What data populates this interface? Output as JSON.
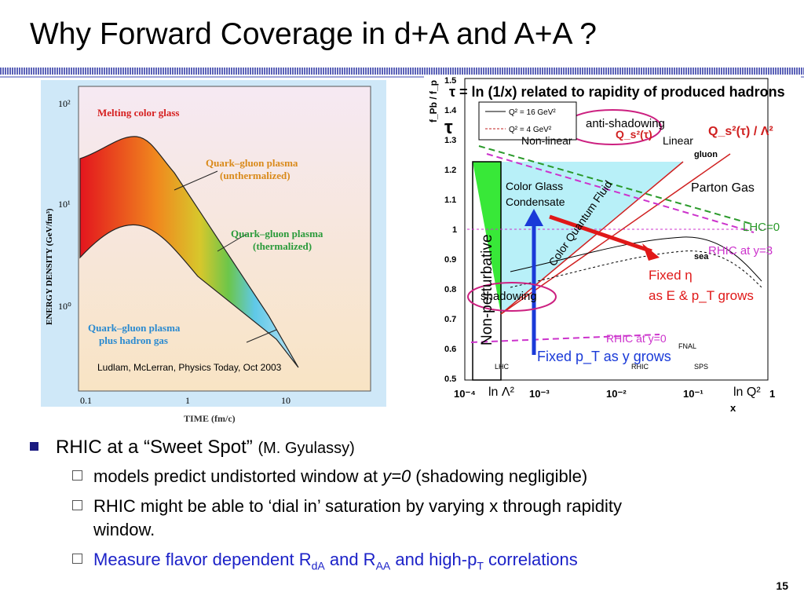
{
  "title": "Why Forward Coverage in d+A and A+A ?",
  "left_figure": {
    "labels": {
      "melting": "Melting color glass",
      "qgp_unth_1": "Quark–gluon plasma",
      "qgp_unth_2": "(unthermalized)",
      "qgp_th_1": "Quark–gluon plasma",
      "qgp_th_2": "(thermalized)",
      "qgp_had_1": "Quark–gluon plasma",
      "qgp_had_2": "plus hadron gas",
      "citation": "Ludlam, McLerran, Physics Today, Oct 2003"
    },
    "y_axis": "ENERGY DENSITY (GeV/fm³)",
    "y_ticks": [
      "10²",
      "10¹",
      "10⁰"
    ],
    "x_axis": "TIME (fm/c)",
    "x_ticks": [
      "0.1",
      "1",
      "10"
    ]
  },
  "right_figure": {
    "header": "τ = ln (1/x) related to rapidity of produced hadrons",
    "tau_symbol": "τ",
    "y_axis_label": "f_Pb / f_p",
    "y_ticks": [
      "1.5",
      "1.4",
      "1.3",
      "1.2",
      "1.1",
      "1",
      "0.9",
      "0.8",
      "0.7",
      "0.6",
      "0.5"
    ],
    "x_label": "x",
    "x_ticks": [
      "10⁻⁴",
      "10⁻³",
      "10⁻²",
      "10⁻¹",
      "1"
    ],
    "legend": [
      "Q² = 16 GeV²",
      "Q² = 4 GeV²"
    ],
    "anti_shadowing": "anti-shadowing",
    "nonlinear": "Non-linear",
    "linear": "Linear",
    "gluon": "gluon",
    "sea": "sea",
    "parton_gas": "Parton Gas",
    "cgc_1": "Color Glass",
    "cgc_2": "Condensate",
    "cqf": "Color Quantum Fluid",
    "nonpert": "Non-perturbative",
    "lhc": "LHC=0",
    "rhic3": "RHIC at y=3",
    "rhic0": "RHIC at y=0",
    "shadowing": "shadowing",
    "fixed_eta_1": "Fixed η",
    "fixed_eta_2": "as E & p_T  grows",
    "fixed_pt": "Fixed p_T as y grows",
    "ln_lambda": "ln Λ²",
    "ln_q2": "ln Q²",
    "qs_a": "Q_s²(τ)",
    "qs_b": "Q_s²(τ) / Λ²",
    "fnal": "FNAL",
    "sps": "SPS",
    "rhic": "RHIC",
    "lhc_small": "LHC"
  },
  "bullets": {
    "b1_main": "RHIC at a “Sweet Spot”",
    "b1_cite": "(M. Gyulassy)",
    "s1_a": "models predict undistorted window at ",
    "s1_b": "y=0",
    "s1_c": " (shadowing negligible)",
    "s2_l1": "RHIC might be able to ‘dial in’ saturation by varying x through rapidity",
    "s2_l2": "window.",
    "s3_a": "Measure flavor dependent R",
    "s3_sub1": "dA",
    "s3_b": " and R",
    "s3_sub2": "AA",
    "s3_c": " and high-p",
    "s3_sub3": "T",
    "s3_d": " correlations"
  },
  "page_number": "15"
}
